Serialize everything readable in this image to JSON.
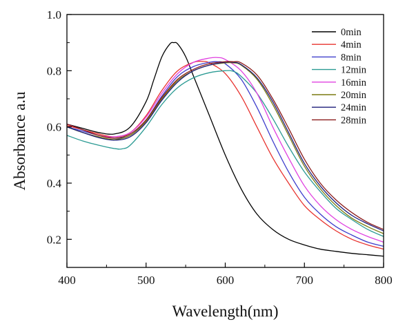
{
  "chart_data": {
    "type": "line",
    "xlabel": "Wavelength(nm)",
    "ylabel": "Absorbance a.u",
    "xlim": [
      400,
      800
    ],
    "ylim": [
      0.1,
      1.0
    ],
    "xticks": [
      400,
      500,
      600,
      700,
      800
    ],
    "yticks": [
      0.2,
      0.4,
      0.6,
      0.8,
      1.0
    ],
    "xtick_labels": [
      "400",
      "500",
      "600",
      "700",
      "800"
    ],
    "ytick_labels": [
      "0.2",
      "0.4",
      "0.6",
      "0.8",
      "1.0"
    ],
    "grid": false,
    "legend_position": "top-right",
    "series": [
      {
        "name": "0min",
        "color": "#000000",
        "x": [
          400,
          420,
          440,
          460,
          480,
          500,
          510,
          520,
          530,
          535,
          540,
          550,
          560,
          580,
          600,
          620,
          640,
          660,
          680,
          700,
          720,
          740,
          760,
          780,
          800
        ],
        "y": [
          0.61,
          0.595,
          0.58,
          0.575,
          0.6,
          0.69,
          0.77,
          0.85,
          0.895,
          0.9,
          0.895,
          0.85,
          0.78,
          0.64,
          0.5,
          0.38,
          0.29,
          0.235,
          0.2,
          0.18,
          0.165,
          0.157,
          0.15,
          0.145,
          0.14
        ]
      },
      {
        "name": "4min",
        "color": "#e8322e",
        "x": [
          400,
          420,
          440,
          460,
          480,
          500,
          520,
          540,
          560,
          570,
          580,
          600,
          620,
          640,
          660,
          680,
          700,
          720,
          740,
          760,
          780,
          800
        ],
        "y": [
          0.605,
          0.59,
          0.575,
          0.565,
          0.58,
          0.64,
          0.73,
          0.8,
          0.83,
          0.833,
          0.828,
          0.79,
          0.71,
          0.6,
          0.49,
          0.4,
          0.32,
          0.27,
          0.23,
          0.2,
          0.18,
          0.165
        ]
      },
      {
        "name": "8min",
        "color": "#3d3dcc",
        "x": [
          400,
          420,
          440,
          460,
          480,
          500,
          520,
          540,
          560,
          580,
          590,
          600,
          620,
          640,
          660,
          680,
          700,
          720,
          740,
          760,
          780,
          800
        ],
        "y": [
          0.6,
          0.585,
          0.57,
          0.56,
          0.57,
          0.625,
          0.71,
          0.78,
          0.815,
          0.83,
          0.832,
          0.825,
          0.77,
          0.67,
          0.55,
          0.44,
          0.35,
          0.29,
          0.245,
          0.215,
          0.19,
          0.175
        ]
      },
      {
        "name": "12min",
        "color": "#2a9a93",
        "x": [
          400,
          420,
          440,
          460,
          470,
          480,
          500,
          520,
          540,
          560,
          580,
          600,
          610,
          620,
          640,
          660,
          680,
          700,
          720,
          740,
          760,
          780,
          800
        ],
        "y": [
          0.57,
          0.55,
          0.535,
          0.523,
          0.522,
          0.535,
          0.6,
          0.68,
          0.74,
          0.775,
          0.793,
          0.8,
          0.798,
          0.78,
          0.72,
          0.63,
          0.53,
          0.44,
          0.37,
          0.31,
          0.27,
          0.235,
          0.21
        ]
      },
      {
        "name": "16min",
        "color": "#e040e0",
        "x": [
          400,
          420,
          440,
          460,
          480,
          500,
          520,
          540,
          560,
          580,
          590,
          600,
          620,
          640,
          660,
          680,
          700,
          720,
          740,
          760,
          780,
          800
        ],
        "y": [
          0.61,
          0.59,
          0.57,
          0.565,
          0.58,
          0.635,
          0.72,
          0.79,
          0.83,
          0.845,
          0.847,
          0.84,
          0.8,
          0.72,
          0.6,
          0.49,
          0.39,
          0.32,
          0.27,
          0.235,
          0.21,
          0.19
        ]
      },
      {
        "name": "20min",
        "color": "#7a7a10",
        "x": [
          400,
          420,
          440,
          460,
          480,
          500,
          520,
          540,
          560,
          580,
          600,
          610,
          620,
          640,
          660,
          680,
          700,
          720,
          740,
          760,
          780,
          800
        ],
        "y": [
          0.6,
          0.58,
          0.565,
          0.555,
          0.57,
          0.62,
          0.7,
          0.765,
          0.8,
          0.82,
          0.828,
          0.828,
          0.82,
          0.77,
          0.68,
          0.57,
          0.46,
          0.38,
          0.32,
          0.275,
          0.245,
          0.22
        ]
      },
      {
        "name": "24min",
        "color": "#1c1c7a",
        "x": [
          400,
          420,
          440,
          460,
          480,
          500,
          520,
          540,
          560,
          580,
          600,
          610,
          620,
          640,
          660,
          680,
          700,
          720,
          740,
          760,
          780,
          800
        ],
        "y": [
          0.6,
          0.58,
          0.562,
          0.553,
          0.565,
          0.615,
          0.695,
          0.76,
          0.8,
          0.82,
          0.83,
          0.83,
          0.822,
          0.775,
          0.69,
          0.58,
          0.47,
          0.39,
          0.33,
          0.285,
          0.255,
          0.23
        ]
      },
      {
        "name": "28min",
        "color": "#8b1a1a",
        "x": [
          400,
          420,
          440,
          460,
          480,
          500,
          520,
          540,
          560,
          580,
          600,
          610,
          620,
          640,
          660,
          680,
          700,
          720,
          740,
          760,
          780,
          800
        ],
        "y": [
          0.61,
          0.59,
          0.57,
          0.56,
          0.575,
          0.625,
          0.705,
          0.77,
          0.805,
          0.825,
          0.832,
          0.832,
          0.828,
          0.785,
          0.7,
          0.595,
          0.485,
          0.4,
          0.34,
          0.295,
          0.26,
          0.235
        ]
      }
    ]
  }
}
